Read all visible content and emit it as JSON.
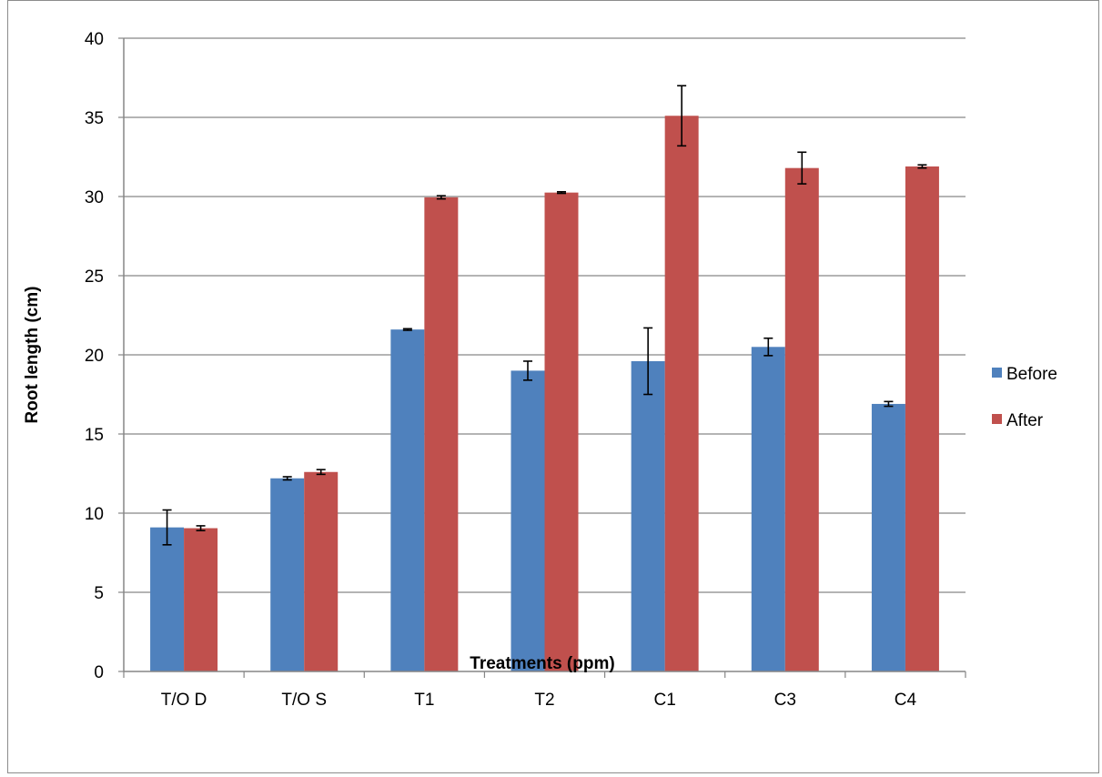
{
  "chart_data": {
    "type": "bar",
    "xlabel": "Treatments (ppm)",
    "ylabel": "Root length (cm)",
    "ylim": [
      0,
      40
    ],
    "yticks": [
      0,
      5,
      10,
      15,
      20,
      25,
      30,
      35,
      40
    ],
    "grid": true,
    "legend_position": "right",
    "categories": [
      "T/O D",
      "T/O S",
      "T1",
      "T2",
      "C1",
      "C3",
      "C4"
    ],
    "series": [
      {
        "name": "Before",
        "color": "#4F81BD",
        "values": [
          9.1,
          12.2,
          21.6,
          19.0,
          19.6,
          20.5,
          16.9
        ],
        "errors": [
          1.1,
          0.1,
          0.05,
          0.6,
          2.1,
          0.55,
          0.15
        ]
      },
      {
        "name": "After",
        "color": "#C0504D",
        "values": [
          9.05,
          12.6,
          29.95,
          30.25,
          35.1,
          31.8,
          31.9
        ],
        "errors": [
          0.15,
          0.15,
          0.1,
          0.05,
          1.9,
          1.0,
          0.1
        ]
      }
    ]
  }
}
